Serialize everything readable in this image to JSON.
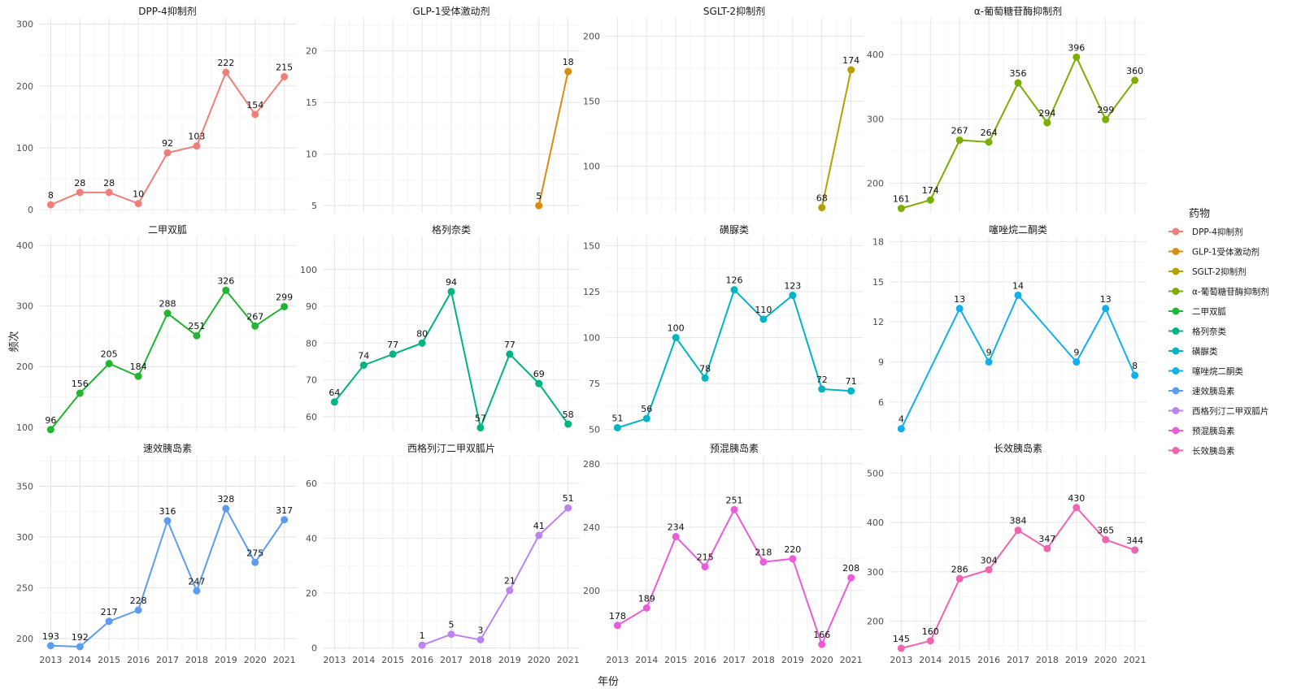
{
  "figure": {
    "xlabel": "年份",
    "ylabel": "频次",
    "legend_title": "药物",
    "legend_position": "right"
  },
  "chart_data": [
    {
      "type": "line",
      "title": "DPP-4抑制剂",
      "color": "#F07F7A",
      "x": [
        2013,
        2014,
        2015,
        2016,
        2017,
        2018,
        2019,
        2020,
        2021
      ],
      "y": [
        8,
        28,
        28,
        10,
        92,
        103,
        222,
        154,
        215
      ],
      "yticks": [
        0,
        100,
        200,
        300
      ],
      "ylim": [
        -5,
        310
      ],
      "grid": true
    },
    {
      "type": "line",
      "title": "GLP-1受体激动剂",
      "color": "#D98C0E",
      "x": [
        2020,
        2021
      ],
      "y": [
        5,
        18
      ],
      "yticks": [
        5,
        10,
        15,
        20
      ],
      "ylim": [
        4.3,
        23.2
      ],
      "grid": true
    },
    {
      "type": "line",
      "title": "SGLT-2抑制剂",
      "color": "#B5A000",
      "x": [
        2020,
        2021
      ],
      "y": [
        68,
        174
      ],
      "yticks": [
        100,
        150,
        200
      ],
      "ylim": [
        64,
        214
      ],
      "grid": true
    },
    {
      "type": "line",
      "title": "α-葡萄糖苷酶抑制剂",
      "color": "#7CAE00",
      "x": [
        2013,
        2014,
        2015,
        2016,
        2017,
        2018,
        2019,
        2020,
        2021
      ],
      "y": [
        161,
        174,
        267,
        264,
        356,
        294,
        396,
        299,
        360
      ],
      "yticks": [
        200,
        300,
        400
      ],
      "ylim": [
        154,
        457
      ],
      "grid": true
    },
    {
      "type": "line",
      "title": "二甲双胍",
      "color": "#22B531",
      "x": [
        2013,
        2014,
        2015,
        2016,
        2017,
        2018,
        2019,
        2020,
        2021
      ],
      "y": [
        96,
        156,
        205,
        184,
        288,
        251,
        326,
        267,
        299
      ],
      "yticks": [
        100,
        200,
        300,
        400
      ],
      "ylim": [
        93,
        415
      ],
      "grid": true
    },
    {
      "type": "line",
      "title": "格列奈类",
      "color": "#00B381",
      "x": [
        2013,
        2014,
        2015,
        2016,
        2017,
        2018,
        2019,
        2020,
        2021
      ],
      "y": [
        64,
        74,
        77,
        80,
        94,
        57,
        77,
        69,
        58
      ],
      "yticks": [
        60,
        70,
        80,
        90,
        100
      ],
      "ylim": [
        56,
        109
      ],
      "grid": true
    },
    {
      "type": "line",
      "title": "磺脲类",
      "color": "#00B5C3",
      "x": [
        2013,
        2014,
        2015,
        2016,
        2017,
        2018,
        2019,
        2020,
        2021
      ],
      "y": [
        51,
        56,
        100,
        78,
        126,
        110,
        123,
        72,
        71
      ],
      "yticks": [
        50,
        75,
        100,
        125,
        150
      ],
      "ylim": [
        49,
        155
      ],
      "grid": true
    },
    {
      "type": "line",
      "title": "噻唑烷二酮类",
      "color": "#10B0EA",
      "x": [
        2013,
        2014,
        2015,
        2016,
        2017,
        2018,
        2019,
        2020,
        2021
      ],
      "y": [
        4,
        null,
        13,
        9,
        14,
        null,
        9,
        13,
        8
      ],
      "yticks": [
        6,
        9,
        12,
        15,
        18
      ],
      "ylim": [
        3.8,
        18.4
      ],
      "grid": true
    },
    {
      "type": "line",
      "title": "速效胰岛素",
      "color": "#5C9CF0",
      "x": [
        2013,
        2014,
        2015,
        2016,
        2017,
        2018,
        2019,
        2020,
        2021
      ],
      "y": [
        193,
        192,
        217,
        228,
        316,
        247,
        328,
        275,
        317
      ],
      "yticks": [
        200,
        250,
        300,
        350
      ],
      "ylim": [
        188,
        380
      ],
      "grid": true
    },
    {
      "type": "line",
      "title": "西格列汀二甲双胍片",
      "color": "#BC82EF",
      "x": [
        2013,
        2014,
        2015,
        2016,
        2017,
        2018,
        2019,
        2020,
        2021
      ],
      "y": [
        null,
        null,
        null,
        1,
        5,
        3,
        21,
        41,
        51
      ],
      "yticks": [
        0,
        20,
        40,
        60
      ],
      "ylim": [
        -1,
        70
      ],
      "grid": true
    },
    {
      "type": "line",
      "title": "预混胰岛素",
      "color": "#EA5CD8",
      "x": [
        2013,
        2014,
        2015,
        2016,
        2017,
        2018,
        2019,
        2020,
        2021
      ],
      "y": [
        178,
        189,
        234,
        215,
        251,
        218,
        220,
        166,
        208
      ],
      "yticks": [
        200,
        240,
        280
      ],
      "ylim": [
        162,
        285
      ],
      "grid": true
    },
    {
      "type": "line",
      "title": "长效胰岛素",
      "color": "#F063AE",
      "x": [
        2013,
        2014,
        2015,
        2016,
        2017,
        2018,
        2019,
        2020,
        2021
      ],
      "y": [
        145,
        160,
        286,
        304,
        384,
        347,
        430,
        365,
        344
      ],
      "yticks": [
        200,
        300,
        400,
        500
      ],
      "ylim": [
        140,
        535
      ],
      "grid": true
    }
  ]
}
